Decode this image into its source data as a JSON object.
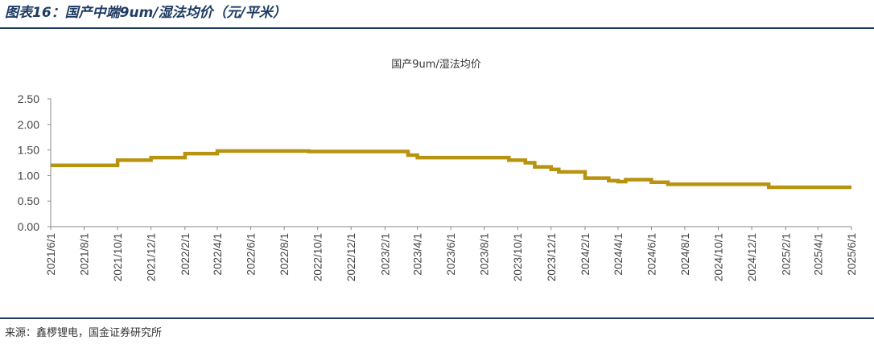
{
  "header": {
    "figure_title": "图表16：国产中端9um/湿法均价（元/平米）"
  },
  "footer": {
    "source": "来源：鑫椤锂电，国金证券研究所"
  },
  "colors": {
    "rule": "#1f3b63",
    "series": "#b8930f",
    "axis": "#888888"
  },
  "chart_data": {
    "type": "line",
    "title": "国产9um/湿法均价",
    "xlabel": "",
    "ylabel": "",
    "ylim": [
      0,
      2.5
    ],
    "yticks": [
      "0.00",
      "0.50",
      "1.00",
      "1.50",
      "2.00",
      "2.50"
    ],
    "xticks": [
      "2021/6/1",
      "2021/8/1",
      "2021/10/1",
      "2021/12/1",
      "2022/2/1",
      "2022/4/1",
      "2022/6/1",
      "2022/8/1",
      "2022/10/1",
      "2022/12/1",
      "2023/2/1",
      "2023/4/1",
      "2023/6/1",
      "2023/8/1",
      "2023/10/1",
      "2023/12/1",
      "2024/2/1",
      "2024/4/1",
      "2024/6/1",
      "2024/8/1",
      "2024/10/1",
      "2024/12/1",
      "2025/2/1",
      "2025/4/1",
      "2025/6/1"
    ],
    "grid": false,
    "legend": "none",
    "series": [
      {
        "step": true,
        "points": [
          [
            "2021/6/1",
            1.2
          ],
          [
            "2021/10/1",
            1.3
          ],
          [
            "2021/12/1",
            1.35
          ],
          [
            "2022/2/1",
            1.43
          ],
          [
            "2022/4/1",
            1.48
          ],
          [
            "2022/9/15",
            1.47
          ],
          [
            "2023/3/15",
            1.4
          ],
          [
            "2023/4/1",
            1.35
          ],
          [
            "2023/9/15",
            1.3
          ],
          [
            "2023/10/15",
            1.25
          ],
          [
            "2023/11/1",
            1.17
          ],
          [
            "2023/12/1",
            1.12
          ],
          [
            "2023/12/15",
            1.07
          ],
          [
            "2024/2/1",
            0.95
          ],
          [
            "2024/3/15",
            0.9
          ],
          [
            "2024/4/1",
            0.88
          ],
          [
            "2024/4/15",
            0.92
          ],
          [
            "2024/6/1",
            0.87
          ],
          [
            "2024/7/1",
            0.83
          ],
          [
            "2025/1/1",
            0.77
          ],
          [
            "2025/6/1",
            0.77
          ]
        ]
      }
    ]
  }
}
